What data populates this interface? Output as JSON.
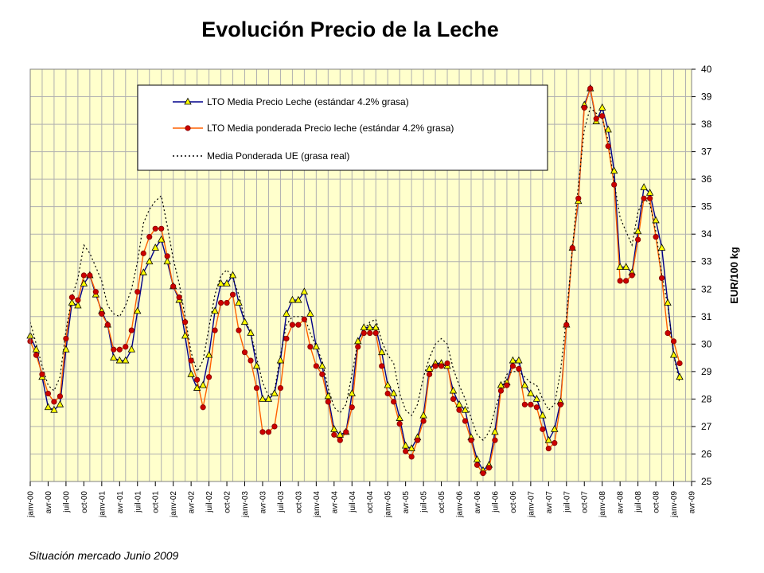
{
  "chart_data": {
    "type": "line",
    "title": "Evolución  Precio de la Leche",
    "ylabel": "EUR/100 kg",
    "xlabel": "",
    "ylim": [
      25,
      40
    ],
    "yticks": [
      25,
      26,
      27,
      28,
      29,
      30,
      31,
      32,
      33,
      34,
      35,
      36,
      37,
      38,
      39,
      40
    ],
    "grid": true,
    "y_axis_side": "right",
    "legend_position": "top-left",
    "x_tick_labels": [
      "janv-00",
      "avr-00",
      "juil-00",
      "oct-00",
      "janv-01",
      "avr-01",
      "juil-01",
      "oct-01",
      "janv-02",
      "avr-02",
      "juil-02",
      "oct-02",
      "janv-03",
      "avr-03",
      "juil-03",
      "oct-03",
      "janv-04",
      "avr-04",
      "juil-04",
      "oct-04",
      "janv-05",
      "avr-05",
      "juil-05",
      "oct-05",
      "janv-06",
      "avr-06",
      "juil-06",
      "oct-06",
      "janv-07",
      "avr-07",
      "juil-07",
      "oct-07",
      "janv-08",
      "avr-08",
      "juil-08",
      "oct-08",
      "janv-09",
      "avr-09"
    ],
    "x_start": "2000-01",
    "x_end": "2009-04",
    "series": [
      {
        "name": "LTO Media Precio Leche (estándar 4.2% grasa)",
        "color": "#00008b",
        "marker": "triangle-yellow",
        "style": "solid",
        "start": "2000-01",
        "values": [
          30.3,
          29.8,
          28.8,
          27.7,
          27.6,
          27.8,
          29.8,
          31.5,
          31.4,
          32.2,
          32.5,
          31.8,
          31.2,
          30.7,
          29.5,
          29.4,
          29.4,
          29.8,
          31.2,
          32.6,
          33.0,
          33.5,
          33.8,
          33.0,
          32.1,
          31.6,
          30.3,
          28.9,
          28.4,
          28.5,
          29.6,
          31.2,
          32.2,
          32.2,
          32.5,
          31.5,
          30.8,
          30.4,
          29.2,
          28.0,
          28.0,
          28.2,
          29.4,
          31.1,
          31.6,
          31.6,
          31.9,
          31.1,
          29.9,
          29.2,
          28.1,
          26.9,
          26.7,
          26.8,
          28.2,
          30.1,
          30.6,
          30.6,
          30.6,
          29.7,
          28.5,
          28.2,
          27.3,
          26.3,
          26.2,
          26.6,
          27.4,
          29.1,
          29.3,
          29.3,
          29.2,
          28.3,
          27.8,
          27.6,
          26.6,
          25.8,
          25.4,
          25.6,
          26.8,
          28.5,
          28.6,
          29.4,
          29.4,
          28.5,
          28.2,
          28.0,
          27.4,
          26.5,
          26.9,
          27.9,
          30.7,
          33.5,
          35.2,
          38.7,
          39.3,
          38.1,
          38.6,
          37.8,
          36.3,
          32.8,
          32.8,
          32.6,
          34.1,
          35.7,
          35.5,
          34.5,
          33.5,
          31.5,
          29.6,
          28.8
        ]
      },
      {
        "name": "LTO Media ponderada Precio leche (estándar 4.2% grasa)",
        "color": "#ff6000",
        "marker": "circle-red",
        "style": "solid",
        "start": "2000-01",
        "values": [
          30.1,
          29.6,
          28.9,
          28.2,
          27.9,
          28.1,
          30.2,
          31.7,
          31.6,
          32.5,
          32.5,
          31.9,
          31.1,
          30.7,
          29.8,
          29.8,
          29.9,
          30.5,
          31.9,
          33.3,
          33.9,
          34.2,
          34.2,
          33.2,
          32.1,
          31.7,
          30.8,
          29.4,
          28.7,
          27.7,
          28.8,
          30.5,
          31.5,
          31.5,
          31.8,
          30.5,
          29.7,
          29.4,
          28.4,
          26.8,
          26.8,
          27.0,
          28.4,
          30.2,
          30.7,
          30.7,
          30.9,
          29.9,
          29.2,
          28.9,
          27.9,
          26.7,
          26.5,
          26.8,
          27.7,
          29.9,
          30.4,
          30.4,
          30.4,
          29.2,
          28.2,
          27.9,
          27.1,
          26.1,
          25.9,
          26.5,
          27.2,
          28.9,
          29.2,
          29.2,
          29.3,
          28.0,
          27.6,
          27.2,
          26.5,
          25.6,
          25.3,
          25.5,
          26.5,
          28.3,
          28.5,
          29.2,
          29.1,
          27.8,
          27.8,
          27.7,
          26.9,
          26.2,
          26.4,
          27.8,
          30.7,
          33.5,
          35.3,
          38.6,
          39.3,
          38.2,
          38.3,
          37.2,
          35.8,
          32.3,
          32.3,
          32.5,
          33.8,
          35.3,
          35.3,
          33.9,
          32.4,
          30.4,
          30.1,
          29.3
        ]
      },
      {
        "name": "Media Ponderada UE (grasa real)",
        "color": "#000000",
        "marker": "none",
        "style": "dotted",
        "start": "2000-01",
        "values": [
          30.8,
          30.0,
          29.2,
          28.5,
          28.3,
          28.8,
          30.5,
          31.7,
          32.4,
          33.6,
          33.3,
          32.8,
          32.3,
          31.4,
          31.1,
          31.0,
          31.4,
          32.0,
          33.0,
          34.4,
          34.9,
          35.2,
          35.4,
          34.3,
          33.1,
          32.2,
          31.0,
          29.7,
          29.0,
          29.4,
          30.6,
          31.8,
          32.5,
          32.7,
          32.4,
          31.8,
          30.9,
          30.4,
          29.5,
          28.6,
          28.1,
          28.3,
          29.6,
          30.7,
          31.0,
          31.0,
          31.0,
          30.4,
          29.9,
          29.4,
          28.4,
          27.7,
          27.5,
          27.8,
          28.9,
          30.1,
          30.5,
          30.8,
          30.9,
          30.1,
          29.6,
          29.3,
          28.2,
          27.6,
          27.4,
          27.8,
          28.8,
          29.5,
          30.0,
          30.2,
          30.0,
          29.1,
          28.5,
          28.0,
          27.3,
          26.7,
          26.5,
          26.8,
          27.6,
          28.3,
          28.9,
          29.0,
          29.0,
          28.8,
          28.6,
          28.5,
          28.0,
          27.6,
          27.8,
          29.0,
          31.0,
          33.5,
          35.8,
          37.8,
          38.6,
          38.4,
          38.2,
          37.4,
          35.9,
          34.6,
          34.1,
          33.6,
          34.8,
          35.3,
          35.1,
          34.1,
          32.5,
          31.4,
          29.6,
          28.6
        ]
      }
    ]
  },
  "footer_text": "Situación mercado Junio 2009"
}
